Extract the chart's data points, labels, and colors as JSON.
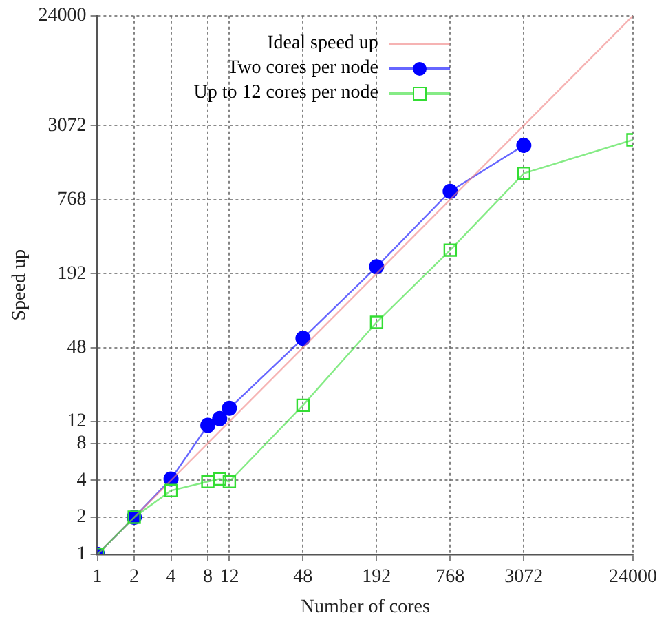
{
  "chart_data": {
    "type": "line",
    "xlabel": "Number of cores",
    "ylabel": "Speed up",
    "log": "xy",
    "grid": true,
    "legend": "top left",
    "xlim": [
      1,
      24000
    ],
    "xticks": [
      1,
      2,
      4,
      8,
      12,
      48,
      192,
      768,
      3072,
      24000
    ],
    "ylim": [
      1,
      24000
    ],
    "yticks": [
      1,
      2,
      4,
      8,
      12,
      48,
      192,
      768,
      3072,
      24000
    ],
    "series": [
      {
        "name": "Ideal speed up",
        "color": "#f08080",
        "marker": "none",
        "x": [
          1,
          24000
        ],
        "values": [
          1,
          24000
        ]
      },
      {
        "name": "Two cores per node",
        "color": "#0000ff",
        "marker": "circle",
        "x": [
          1,
          2,
          4,
          8,
          10,
          12,
          48,
          192,
          768,
          3072
        ],
        "values": [
          1,
          2,
          4.1,
          11.2,
          12.7,
          15.4,
          57,
          218,
          896,
          2120
        ]
      },
      {
        "name": "Up to 12 cores per node",
        "color": "#33dd33",
        "marker": "square",
        "x": [
          1,
          2,
          4,
          8,
          10,
          12,
          48,
          192,
          768,
          3072,
          24000
        ],
        "values": [
          1,
          2,
          3.3,
          3.9,
          4.1,
          3.9,
          16.3,
          77,
          298,
          1254,
          2350
        ]
      }
    ]
  }
}
